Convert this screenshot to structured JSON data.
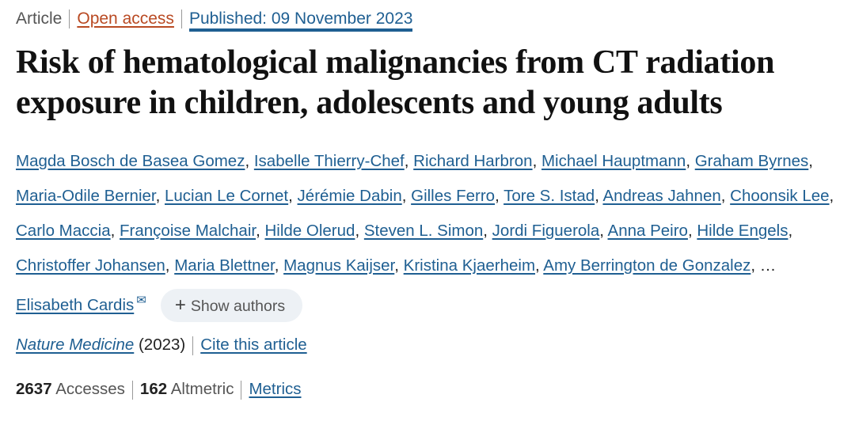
{
  "meta": {
    "type": "Article",
    "access": "Open access",
    "published": "Published: 09 November 2023"
  },
  "title": "Risk of hematological malignancies from CT radiation exposure in children, adolescents and young adults",
  "authors": [
    "Magda Bosch de Basea Gomez",
    "Isabelle Thierry-Chef",
    "Richard Harbron",
    "Michael Hauptmann",
    "Graham Byrnes",
    "Maria-Odile Bernier",
    "Lucian Le Cornet",
    "Jérémie Dabin",
    "Gilles Ferro",
    "Tore S. Istad",
    "Andreas Jahnen",
    "Choonsik Lee",
    "Carlo Maccia",
    "Françoise Malchair",
    "Hilde Olerud",
    "Steven L. Simon",
    "Jordi Figuerola",
    "Anna Peiro",
    "Hilde Engels",
    "Christoffer Johansen",
    "Maria Blettner",
    "Magnus Kaijser",
    "Kristina Kjaerheim",
    "Amy Berrington de Gonzalez"
  ],
  "ellipsis": "…",
  "corresponding_author": "Elisabeth Cardis",
  "show_authors": "Show authors",
  "journal": {
    "name": "Nature Medicine",
    "year": "(2023)",
    "cite": "Cite this article"
  },
  "metrics": {
    "accesses": "2637",
    "accesses_label": "Accesses",
    "altmetric": "162",
    "altmetric_label": "Altmetric",
    "metrics_link": "Metrics"
  }
}
